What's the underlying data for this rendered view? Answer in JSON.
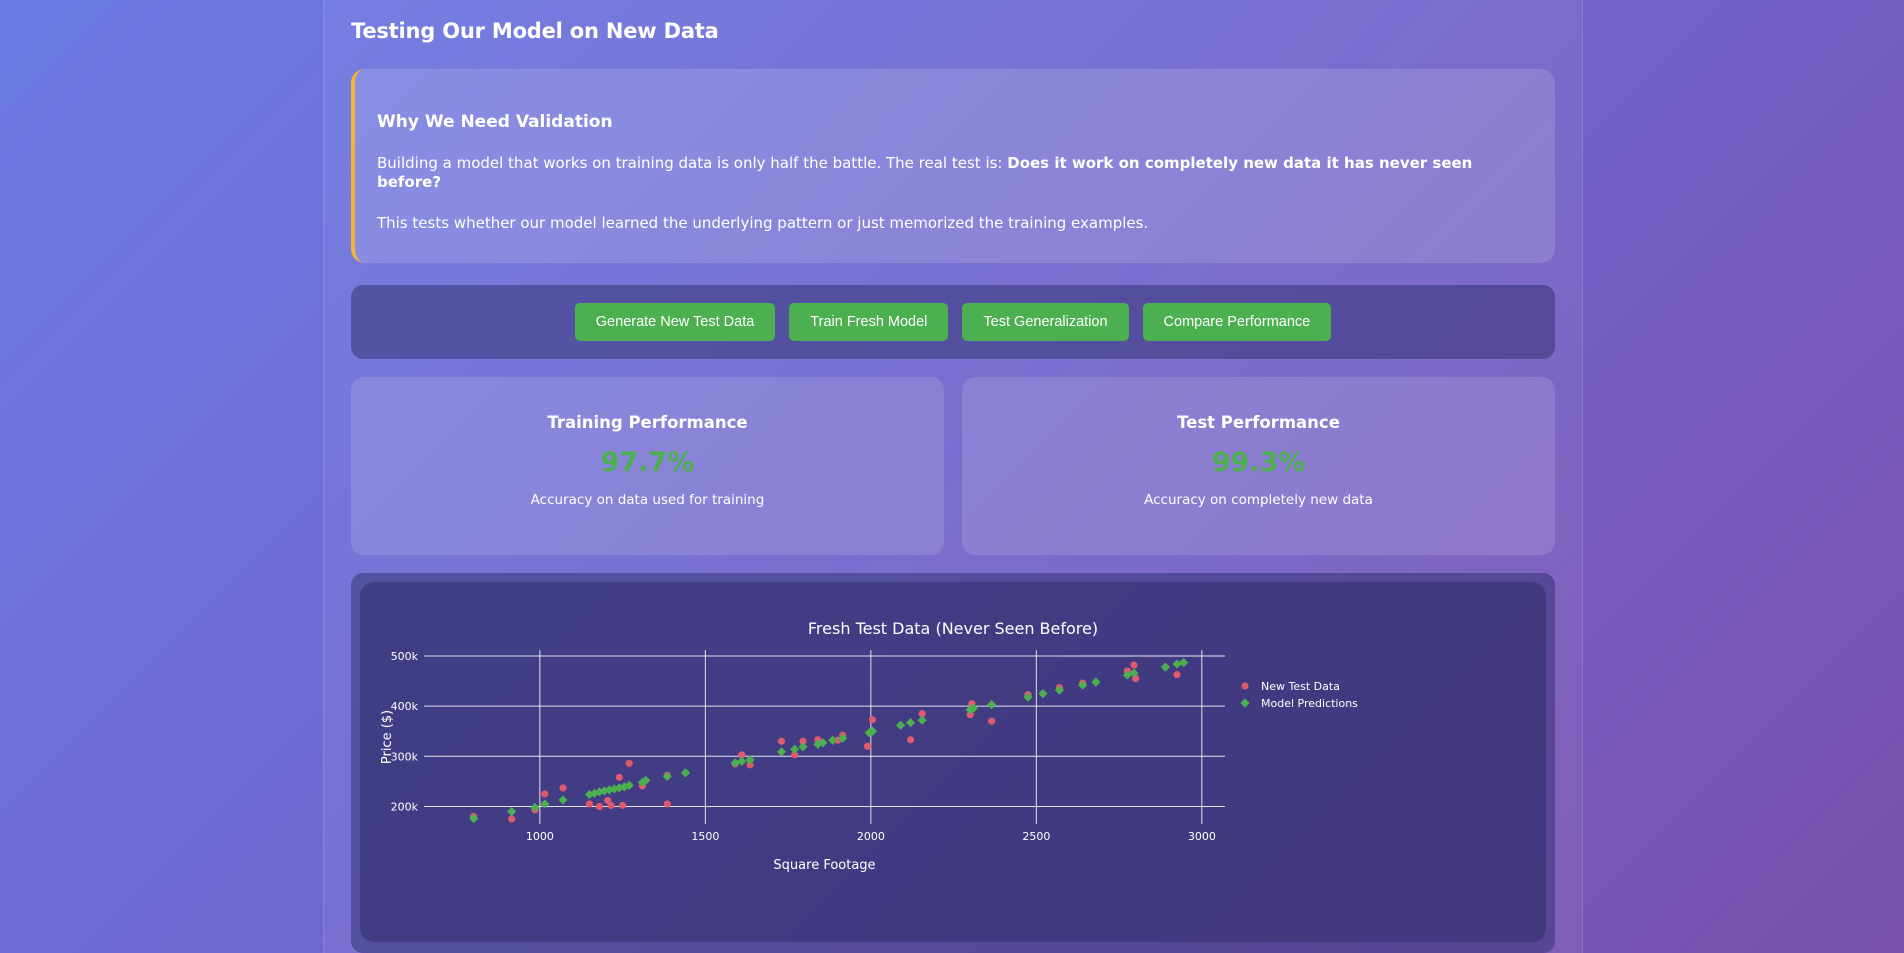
{
  "page": {
    "title": "Testing Our Model on New Data"
  },
  "info": {
    "heading": "Why We Need Validation",
    "para1_text": "Building a model that works on training data is only half the battle. The real test is: ",
    "para1_bold": "Does it work on completely new data it has never seen before?",
    "para2": "This tests whether our model learned the underlying pattern or just memorized the training examples.",
    "accent_color": "#f2b632"
  },
  "toolbar": {
    "generate_label": "Generate New Test Data",
    "train_label": "Train Fresh Model",
    "test_label": "Test Generalization",
    "compare_label": "Compare Performance",
    "button_color": "#4caf50"
  },
  "metrics": {
    "training": {
      "title": "Training Performance",
      "value": "97.7%",
      "description": "Accuracy on data used for training"
    },
    "test": {
      "title": "Test Performance",
      "value": "99.3%",
      "description": "Accuracy on completely new data"
    },
    "value_color": "#4caf50"
  },
  "chart_data": {
    "type": "scatter",
    "title": "Fresh Test Data (Never Seen Before)",
    "xlabel": "Square Footage",
    "ylabel": "Price ($)",
    "xlim": [
      650,
      3070
    ],
    "ylim": [
      165000,
      512000
    ],
    "x_ticks": [
      1000,
      1500,
      2000,
      2500,
      3000
    ],
    "x_tick_labels": [
      "1000",
      "1500",
      "2000",
      "2500",
      "3000"
    ],
    "y_ticks": [
      200000,
      300000,
      400000,
      500000
    ],
    "y_tick_labels": [
      "200k",
      "300k",
      "400k",
      "500k"
    ],
    "grid": true,
    "legend_position": "top-right",
    "series": [
      {
        "name": "New Test Data",
        "marker": "circle",
        "color": "#e05a6e",
        "points": [
          [
            800,
            180000
          ],
          [
            915,
            175000
          ],
          [
            985,
            193000
          ],
          [
            1015,
            225000
          ],
          [
            1070,
            237000
          ],
          [
            1150,
            205000
          ],
          [
            1180,
            200000
          ],
          [
            1205,
            212000
          ],
          [
            1215,
            202000
          ],
          [
            1240,
            258000
          ],
          [
            1250,
            202000
          ],
          [
            1270,
            286000
          ],
          [
            1310,
            241000
          ],
          [
            1385,
            205000
          ],
          [
            1385,
            262000
          ],
          [
            1590,
            285000
          ],
          [
            1610,
            303000
          ],
          [
            1635,
            283000
          ],
          [
            1730,
            330000
          ],
          [
            1770,
            303000
          ],
          [
            1795,
            330000
          ],
          [
            1840,
            333000
          ],
          [
            1900,
            332000
          ],
          [
            1915,
            342000
          ],
          [
            1990,
            320000
          ],
          [
            2005,
            373000
          ],
          [
            2120,
            333000
          ],
          [
            2155,
            385000
          ],
          [
            2300,
            383000
          ],
          [
            2305,
            405000
          ],
          [
            2365,
            370000
          ],
          [
            2475,
            423000
          ],
          [
            2570,
            437000
          ],
          [
            2640,
            446000
          ],
          [
            2775,
            470000
          ],
          [
            2795,
            482000
          ],
          [
            2800,
            455000
          ],
          [
            2925,
            463000
          ]
        ]
      },
      {
        "name": "Model Predictions",
        "marker": "diamond",
        "color": "#4caf50",
        "points": [
          [
            800,
            176000
          ],
          [
            915,
            190000
          ],
          [
            985,
            198000
          ],
          [
            1015,
            205000
          ],
          [
            1070,
            213000
          ],
          [
            1150,
            224000
          ],
          [
            1165,
            226000
          ],
          [
            1180,
            229000
          ],
          [
            1195,
            231000
          ],
          [
            1210,
            233000
          ],
          [
            1225,
            235000
          ],
          [
            1240,
            237000
          ],
          [
            1255,
            239000
          ],
          [
            1270,
            242000
          ],
          [
            1310,
            248000
          ],
          [
            1320,
            252000
          ],
          [
            1385,
            260000
          ],
          [
            1440,
            267000
          ],
          [
            1590,
            287000
          ],
          [
            1610,
            290000
          ],
          [
            1635,
            293000
          ],
          [
            1730,
            309000
          ],
          [
            1770,
            314000
          ],
          [
            1795,
            319000
          ],
          [
            1840,
            324000
          ],
          [
            1855,
            327000
          ],
          [
            1885,
            332000
          ],
          [
            1915,
            336000
          ],
          [
            1995,
            347000
          ],
          [
            2005,
            350000
          ],
          [
            2090,
            362000
          ],
          [
            2120,
            367000
          ],
          [
            2155,
            372000
          ],
          [
            2300,
            393000
          ],
          [
            2310,
            396000
          ],
          [
            2365,
            403000
          ],
          [
            2475,
            418000
          ],
          [
            2520,
            425000
          ],
          [
            2570,
            432000
          ],
          [
            2640,
            442000
          ],
          [
            2680,
            448000
          ],
          [
            2775,
            462000
          ],
          [
            2795,
            466000
          ],
          [
            2890,
            478000
          ],
          [
            2925,
            484000
          ],
          [
            2945,
            487000
          ]
        ]
      }
    ]
  }
}
